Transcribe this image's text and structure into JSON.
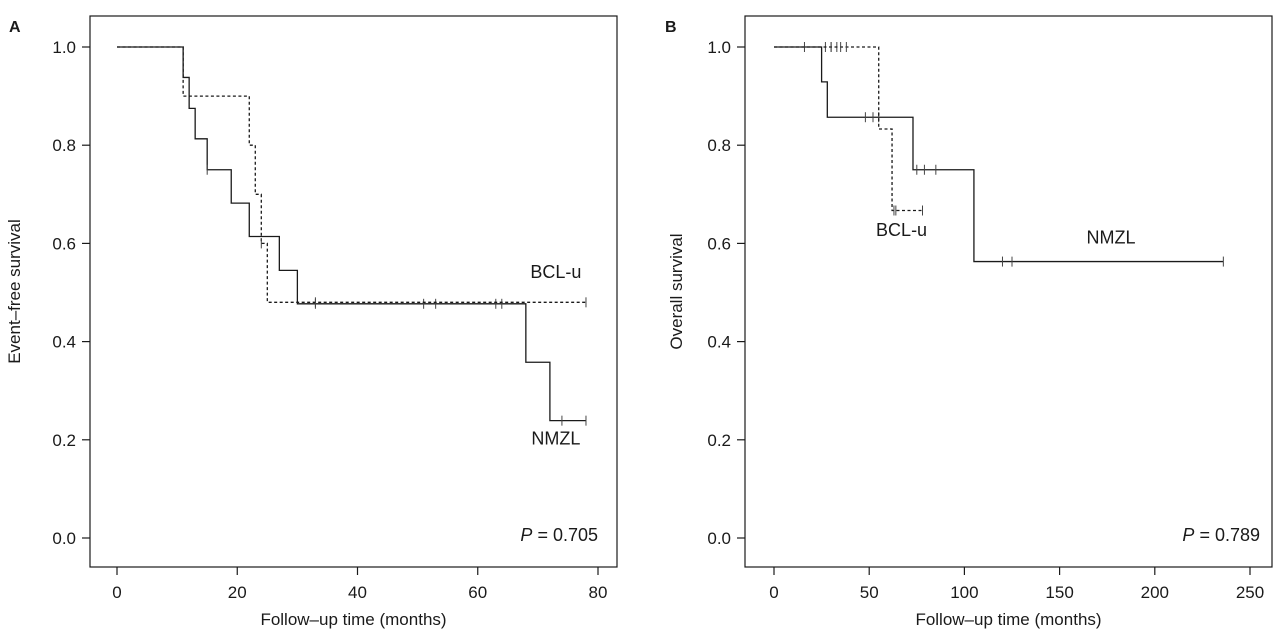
{
  "chart_data": [
    {
      "panel_label": "A",
      "type": "line",
      "chart_kind": "kaplan-meier",
      "xlabel": "Follow–up time (months)",
      "ylabel": "Event–free survival",
      "xlim": [
        0,
        80
      ],
      "ylim": [
        0,
        1
      ],
      "xticks": [
        0,
        20,
        40,
        60,
        80
      ],
      "yticks": [
        0.0,
        0.2,
        0.4,
        0.6,
        0.8,
        1.0
      ],
      "ytick_labels": [
        "0.0",
        "0.2",
        "0.4",
        "0.6",
        "0.8",
        "1.0"
      ],
      "grid": false,
      "p_value": {
        "prefix": "P",
        "text": " = 0.705"
      },
      "series": [
        {
          "name": "NMZL",
          "line_style": "solid",
          "steps": [
            [
              0,
              1.0
            ],
            [
              11,
              0.938
            ],
            [
              12,
              0.875
            ],
            [
              13,
              0.813
            ],
            [
              15,
              0.75
            ],
            [
              19,
              0.682
            ],
            [
              22,
              0.614
            ],
            [
              27,
              0.545
            ],
            [
              30,
              0.477
            ],
            [
              68,
              0.358
            ],
            [
              72,
              0.239
            ],
            [
              78,
              0.239
            ]
          ],
          "censored": [
            [
              15,
              0.75
            ],
            [
              33,
              0.477
            ],
            [
              51,
              0.477
            ],
            [
              53,
              0.477
            ],
            [
              63,
              0.477
            ],
            [
              64,
              0.477
            ],
            [
              74,
              0.239
            ],
            [
              78,
              0.239
            ]
          ]
        },
        {
          "name": "BCL-u",
          "line_style": "dashed",
          "steps": [
            [
              0,
              1.0
            ],
            [
              11,
              0.9
            ],
            [
              22,
              0.8
            ],
            [
              23,
              0.7
            ],
            [
              24,
              0.6
            ],
            [
              25,
              0.48
            ],
            [
              78,
              0.48
            ]
          ],
          "censored": [
            [
              24,
              0.6
            ],
            [
              33,
              0.48
            ],
            [
              78,
              0.48
            ]
          ]
        }
      ],
      "annotations": [
        {
          "text": "BCL-u",
          "x": 73,
          "y": 0.53
        },
        {
          "text": "NMZL",
          "x": 73,
          "y": 0.19
        }
      ]
    },
    {
      "panel_label": "B",
      "type": "line",
      "chart_kind": "kaplan-meier",
      "xlabel": "Follow–up time (months)",
      "ylabel": "Overall survival",
      "xlim": [
        0,
        250
      ],
      "ylim": [
        0,
        1
      ],
      "xticks": [
        0,
        50,
        100,
        150,
        200,
        250
      ],
      "yticks": [
        0.0,
        0.2,
        0.4,
        0.6,
        0.8,
        1.0
      ],
      "ytick_labels": [
        "0.0",
        "0.2",
        "0.4",
        "0.6",
        "0.8",
        "1.0"
      ],
      "grid": false,
      "p_value": {
        "prefix": "P",
        "text": " = 0.789"
      },
      "series": [
        {
          "name": "NMZL",
          "line_style": "solid",
          "steps": [
            [
              0,
              1.0
            ],
            [
              25,
              0.929
            ],
            [
              28,
              0.857
            ],
            [
              73,
              0.75
            ],
            [
              105,
              0.563
            ],
            [
              236,
              0.563
            ]
          ],
          "censored": [
            [
              16,
              1.0
            ],
            [
              27,
              1.0
            ],
            [
              30,
              1.0
            ],
            [
              33,
              1.0
            ],
            [
              48,
              0.857
            ],
            [
              52,
              0.857
            ],
            [
              55,
              0.857
            ],
            [
              75,
              0.75
            ],
            [
              79,
              0.75
            ],
            [
              85,
              0.75
            ],
            [
              120,
              0.563
            ],
            [
              125,
              0.563
            ],
            [
              236,
              0.563
            ]
          ]
        },
        {
          "name": "BCL-u",
          "line_style": "dashed",
          "steps": [
            [
              0,
              1.0
            ],
            [
              55,
              1.0
            ],
            [
              55,
              0.833
            ],
            [
              62,
              0.667
            ],
            [
              78,
              0.667
            ]
          ],
          "censored": [
            [
              30,
              1.0
            ],
            [
              35,
              1.0
            ],
            [
              38,
              1.0
            ],
            [
              63,
              0.667
            ],
            [
              64,
              0.667
            ],
            [
              78,
              0.667
            ]
          ]
        }
      ],
      "annotations": [
        {
          "text": "BCL-u",
          "x": 67,
          "y": 0.615
        },
        {
          "text": "NMZL",
          "x": 177,
          "y": 0.6
        }
      ]
    }
  ]
}
